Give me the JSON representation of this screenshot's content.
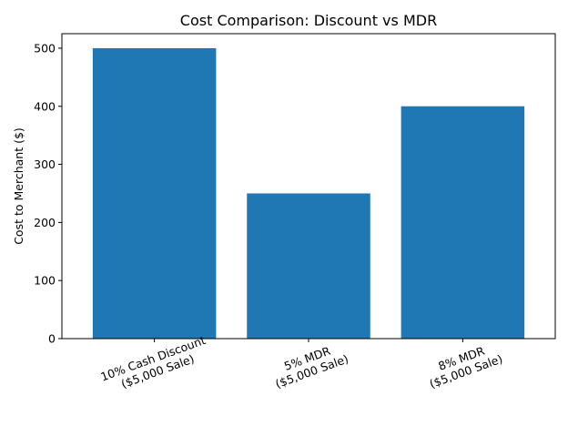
{
  "chart_data": {
    "type": "bar",
    "title": "Cost Comparison: Discount vs MDR",
    "xlabel": "",
    "ylabel": "Cost to Merchant ($)",
    "categories": [
      [
        "10% Cash Discount",
        "($5,000 Sale)"
      ],
      [
        "5% MDR",
        "($5,000 Sale)"
      ],
      [
        "8% MDR",
        "($5,000 Sale)"
      ]
    ],
    "values": [
      500,
      250,
      400
    ],
    "ylim": [
      0,
      525
    ],
    "yticks": [
      0,
      100,
      200,
      300,
      400,
      500
    ],
    "bar_color": "#1f77b4",
    "grid": false
  }
}
